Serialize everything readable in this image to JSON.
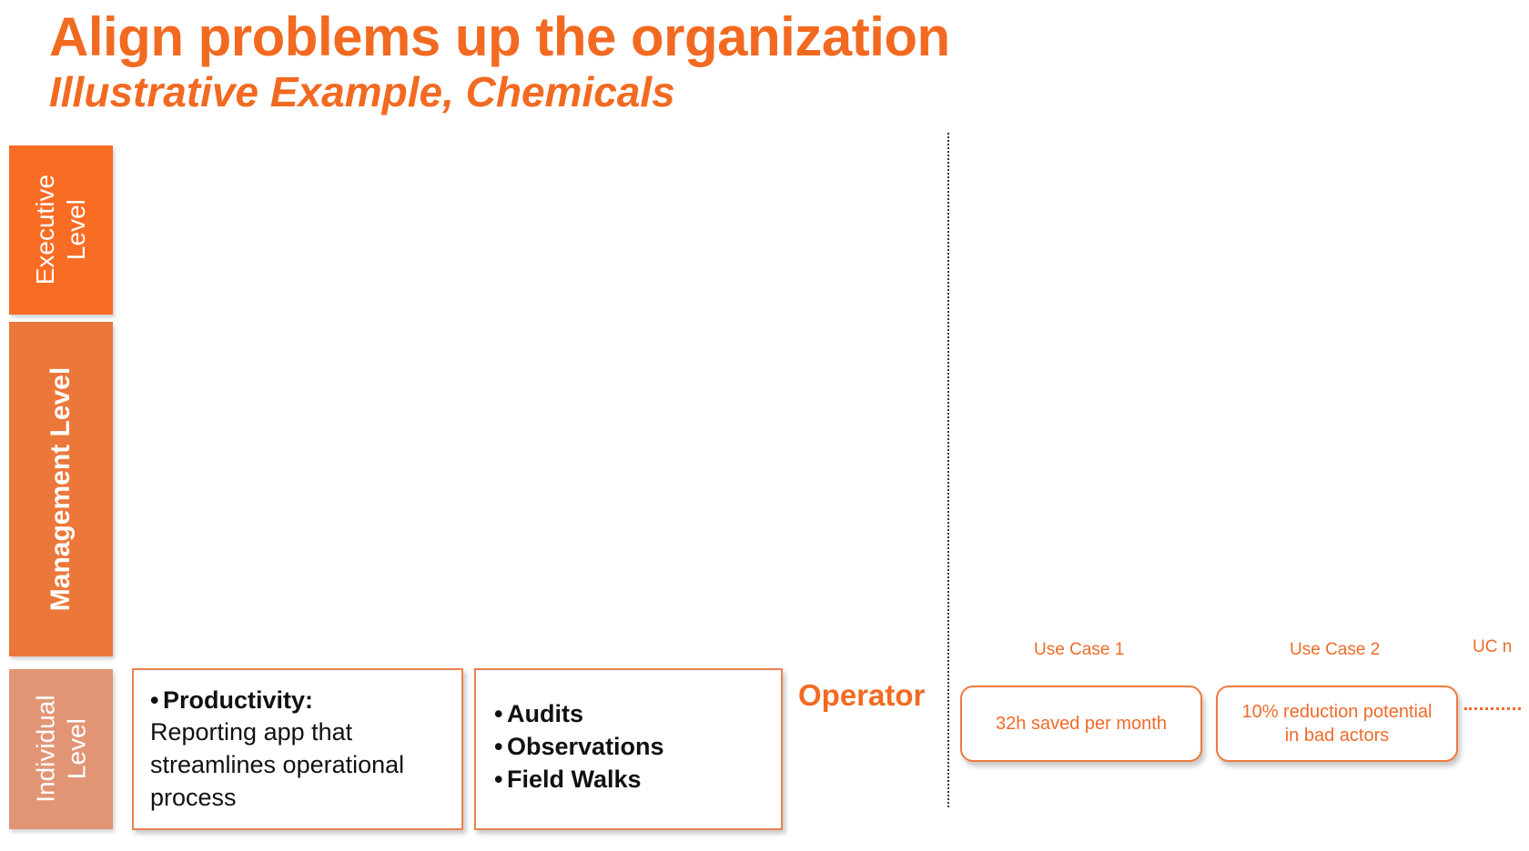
{
  "header": {
    "title": "Align problems up the organization",
    "subtitle": "Illustrative Example, Chemicals"
  },
  "levels": {
    "executive": "Executive Level",
    "management": "Management Level",
    "individual": "Individual Level"
  },
  "individual_row": {
    "productivity_box": {
      "bullet": "•",
      "heading": "Productivity:",
      "body": "Reporting app that streamlines operational process"
    },
    "activities_box": {
      "items": [
        "Audits",
        "Observations",
        "Field Walks"
      ]
    },
    "role_label": "Operator"
  },
  "use_cases": {
    "uc1": {
      "label": "Use Case 1",
      "value": "32h saved per month"
    },
    "uc2": {
      "label": "Use Case 2",
      "value": "10% reduction potential in bad actors"
    },
    "ucn": {
      "label": "UC n"
    }
  },
  "colors": {
    "accent": "#f26a21",
    "executive": "#f96c24",
    "management": "#ec773a",
    "individual": "#e29575"
  }
}
